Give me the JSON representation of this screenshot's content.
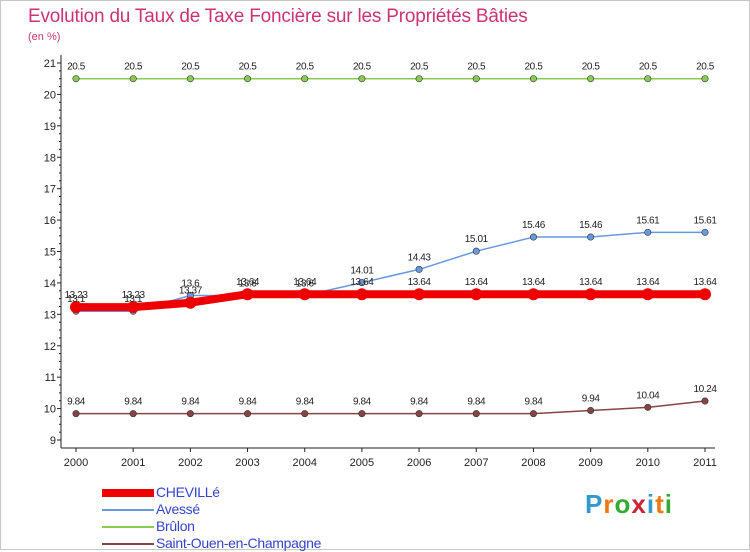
{
  "title": "Evolution du Taux de Taxe Foncière sur les Propriétés Bâties",
  "unit": "(en %)",
  "logo": {
    "text": "Proxiti",
    "letters": [
      "P",
      "r",
      "o",
      "x",
      "i",
      "t",
      "i"
    ],
    "colors": [
      "#3399cc",
      "#ee7711",
      "#33aa33",
      "#cc2233",
      "#3399cc",
      "#ee7711",
      "#33aa33"
    ]
  },
  "chart_data": {
    "type": "line",
    "title": "Evolution du Taux de Taxe Foncière sur les Propriétés Bâties",
    "ylabel": "(en %)",
    "xlabel": "",
    "ylim": [
      9,
      21
    ],
    "yticks": [
      9,
      10,
      11,
      12,
      13,
      14,
      15,
      16,
      17,
      18,
      19,
      20,
      21
    ],
    "categories": [
      "2000",
      "2001",
      "2002",
      "2003",
      "2004",
      "2005",
      "2006",
      "2007",
      "2008",
      "2009",
      "2010",
      "2011"
    ],
    "grid": false,
    "legend": "bottom-left",
    "series": [
      {
        "name": "CHEVILLé",
        "color": "#ee0000",
        "bold": true,
        "values": [
          13.23,
          13.23,
          13.37,
          13.64,
          13.64,
          13.64,
          13.64,
          13.64,
          13.64,
          13.64,
          13.64,
          13.64
        ],
        "labels": [
          "13.23",
          "13.23",
          "13.37",
          "13.64",
          "13.64",
          "13.64",
          "13.64",
          "13.64",
          "13.64",
          "13.64",
          "13.64",
          "13.64"
        ]
      },
      {
        "name": "Avessé",
        "color": "#6699dd",
        "bold": false,
        "values": [
          13.1,
          13.1,
          13.6,
          13.6,
          13.6,
          14.01,
          14.43,
          15.01,
          15.46,
          15.46,
          15.61,
          15.61
        ],
        "labels": [
          "13.1",
          "13.1",
          "13.6",
          "13.6",
          "13.6",
          "14.01",
          "14.43",
          "15.01",
          "15.46",
          "15.46",
          "15.61",
          "15.61"
        ]
      },
      {
        "name": "Brûlon",
        "color": "#88cc55",
        "bold": false,
        "values": [
          20.5,
          20.5,
          20.5,
          20.5,
          20.5,
          20.5,
          20.5,
          20.5,
          20.5,
          20.5,
          20.5,
          20.5
        ],
        "labels": [
          "20.5",
          "20.5",
          "20.5",
          "20.5",
          "20.5",
          "20.5",
          "20.5",
          "20.5",
          "20.5",
          "20.5",
          "20.5",
          "20.5"
        ]
      },
      {
        "name": "Saint-Ouen-en-Champagne",
        "color": "#884444",
        "bold": false,
        "values": [
          9.84,
          9.84,
          9.84,
          9.84,
          9.84,
          9.84,
          9.84,
          9.84,
          9.84,
          9.94,
          10.04,
          10.24
        ],
        "labels": [
          "9.84",
          "9.84",
          "9.84",
          "9.84",
          "9.84",
          "9.84",
          "9.84",
          "9.84",
          "9.84",
          "9.94",
          "10.04",
          "10.24"
        ]
      }
    ]
  }
}
